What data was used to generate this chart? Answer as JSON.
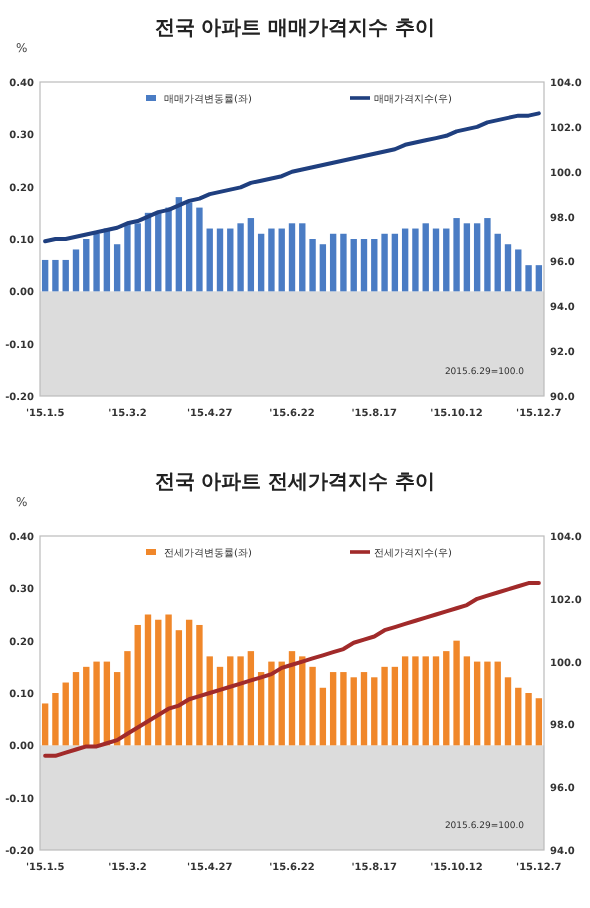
{
  "chart_data": [
    {
      "type": "bar",
      "title": "전국 아파트 매매가격지수 추이",
      "ylabel": "%",
      "categories": [
        "'15.1.5",
        null,
        null,
        null,
        null,
        null,
        null,
        null,
        "'15.3.2",
        null,
        null,
        null,
        null,
        null,
        null,
        null,
        "'15.4.27",
        null,
        null,
        null,
        null,
        null,
        null,
        null,
        "'15.6.22",
        null,
        null,
        null,
        null,
        null,
        null,
        null,
        "'15.8.17",
        null,
        null,
        null,
        null,
        null,
        null,
        null,
        "'15.10.12",
        null,
        null,
        null,
        null,
        null,
        null,
        null,
        "'15.12.7"
      ],
      "series": [
        {
          "name": "매매가격변동률(좌)",
          "type": "bar",
          "color": "#4a7cc4",
          "values": [
            0.06,
            0.06,
            0.06,
            0.08,
            0.1,
            0.11,
            0.12,
            0.09,
            0.13,
            0.13,
            0.15,
            0.15,
            0.16,
            0.18,
            0.17,
            0.16,
            0.12,
            0.12,
            0.12,
            0.13,
            0.14,
            0.11,
            0.12,
            0.12,
            0.13,
            0.13,
            0.1,
            0.09,
            0.11,
            0.11,
            0.1,
            0.1,
            0.1,
            0.11,
            0.11,
            0.12,
            0.12,
            0.13,
            0.12,
            0.12,
            0.14,
            0.13,
            0.13,
            0.14,
            0.11,
            0.09,
            0.08,
            0.05,
            0.05
          ]
        },
        {
          "name": "매매가격지수(우)",
          "type": "line",
          "axis": "y2",
          "color": "#1f3f7f",
          "values": [
            96.9,
            97.0,
            97.0,
            97.1,
            97.2,
            97.3,
            97.4,
            97.5,
            97.7,
            97.8,
            98.0,
            98.2,
            98.3,
            98.5,
            98.7,
            98.8,
            99.0,
            99.1,
            99.2,
            99.3,
            99.5,
            99.6,
            99.7,
            99.8,
            100.0,
            100.1,
            100.2,
            100.3,
            100.4,
            100.5,
            100.6,
            100.7,
            100.8,
            100.9,
            101.0,
            101.2,
            101.3,
            101.4,
            101.5,
            101.6,
            101.8,
            101.9,
            102.0,
            102.2,
            102.3,
            102.4,
            102.5,
            102.5,
            102.6
          ]
        }
      ],
      "ylim": [
        -0.2,
        0.4
      ],
      "yticks": [
        {
          "value": -0.2,
          "label": "-0.20"
        },
        {
          "value": -0.1,
          "label": "-0.10"
        },
        {
          "value": 0,
          "label": "0.00"
        },
        {
          "value": 0.1,
          "label": "0.10"
        },
        {
          "value": 0.2,
          "label": "0.20"
        },
        {
          "value": 0.3,
          "label": "0.30"
        },
        {
          "value": 0.4,
          "label": "0.40"
        }
      ],
      "y2lim": [
        90,
        104
      ],
      "y2ticks": [
        {
          "value": 90,
          "label": "90.0"
        },
        {
          "value": 92,
          "label": "92.0"
        },
        {
          "value": 94,
          "label": "94.0"
        },
        {
          "value": 96,
          "label": "96.0"
        },
        {
          "value": 98,
          "label": "98.0"
        },
        {
          "value": 100,
          "label": "100.0"
        },
        {
          "value": 102,
          "label": "102.0"
        },
        {
          "value": 104,
          "label": "104.0"
        }
      ],
      "bands": [
        {
          "axis": "y",
          "from": 0,
          "to": -0.2,
          "color": "#dcdcdc"
        }
      ],
      "annotations": [
        "2015.6.29=100.0"
      ],
      "legend": "top"
    },
    {
      "type": "bar",
      "title": "전국 아파트  전세가격지수 추이",
      "ylabel": "%",
      "categories": [
        "'15.1.5",
        null,
        null,
        null,
        null,
        null,
        null,
        null,
        "'15.3.2",
        null,
        null,
        null,
        null,
        null,
        null,
        null,
        "'15.4.27",
        null,
        null,
        null,
        null,
        null,
        null,
        null,
        "'15.6.22",
        null,
        null,
        null,
        null,
        null,
        null,
        null,
        "'15.8.17",
        null,
        null,
        null,
        null,
        null,
        null,
        null,
        "'15.10.12",
        null,
        null,
        null,
        null,
        null,
        null,
        null,
        "'15.12.7"
      ],
      "series": [
        {
          "name": "전세가격변동률(좌)",
          "type": "bar",
          "color": "#f0872a",
          "values": [
            0.08,
            0.1,
            0.12,
            0.14,
            0.15,
            0.16,
            0.16,
            0.14,
            0.18,
            0.23,
            0.25,
            0.24,
            0.25,
            0.22,
            0.24,
            0.23,
            0.17,
            0.15,
            0.17,
            0.17,
            0.18,
            0.14,
            0.16,
            0.16,
            0.18,
            0.17,
            0.15,
            0.11,
            0.14,
            0.14,
            0.13,
            0.14,
            0.13,
            0.15,
            0.15,
            0.17,
            0.17,
            0.17,
            0.17,
            0.18,
            0.2,
            0.17,
            0.16,
            0.16,
            0.16,
            0.13,
            0.11,
            0.1,
            0.09
          ]
        },
        {
          "name": "전세가격지수(우)",
          "type": "line",
          "axis": "y2",
          "color": "#a12a2a",
          "values": [
            97.0,
            97.0,
            97.1,
            97.2,
            97.3,
            97.3,
            97.4,
            97.5,
            97.7,
            97.9,
            98.1,
            98.3,
            98.5,
            98.6,
            98.8,
            98.9,
            99.0,
            99.1,
            99.2,
            99.3,
            99.4,
            99.5,
            99.6,
            99.8,
            99.9,
            100.0,
            100.1,
            100.2,
            100.3,
            100.4,
            100.6,
            100.7,
            100.8,
            101.0,
            101.1,
            101.2,
            101.3,
            101.4,
            101.5,
            101.6,
            101.7,
            101.8,
            102.0,
            102.1,
            102.2,
            102.3,
            102.4,
            102.5,
            102.5
          ]
        }
      ],
      "ylim": [
        -0.2,
        0.4
      ],
      "yticks": [
        {
          "value": -0.2,
          "label": "-0.20"
        },
        {
          "value": -0.1,
          "label": "-0.10"
        },
        {
          "value": 0,
          "label": "0.00"
        },
        {
          "value": 0.1,
          "label": "0.10"
        },
        {
          "value": 0.2,
          "label": "0.20"
        },
        {
          "value": 0.3,
          "label": "0.30"
        },
        {
          "value": 0.4,
          "label": "0.40"
        }
      ],
      "y2lim": [
        94,
        104
      ],
      "y2ticks": [
        {
          "value": 94,
          "label": "94.0"
        },
        {
          "value": 96,
          "label": "96.0"
        },
        {
          "value": 98,
          "label": "98.0"
        },
        {
          "value": 100,
          "label": "100.0"
        },
        {
          "value": 102,
          "label": "102.0"
        },
        {
          "value": 104,
          "label": "104.0"
        }
      ],
      "bands": [
        {
          "axis": "y",
          "from": 0,
          "to": -0.2,
          "color": "#dcdcdc"
        }
      ],
      "annotations": [
        "2015.6.29=100.0"
      ],
      "legend": "top"
    }
  ]
}
